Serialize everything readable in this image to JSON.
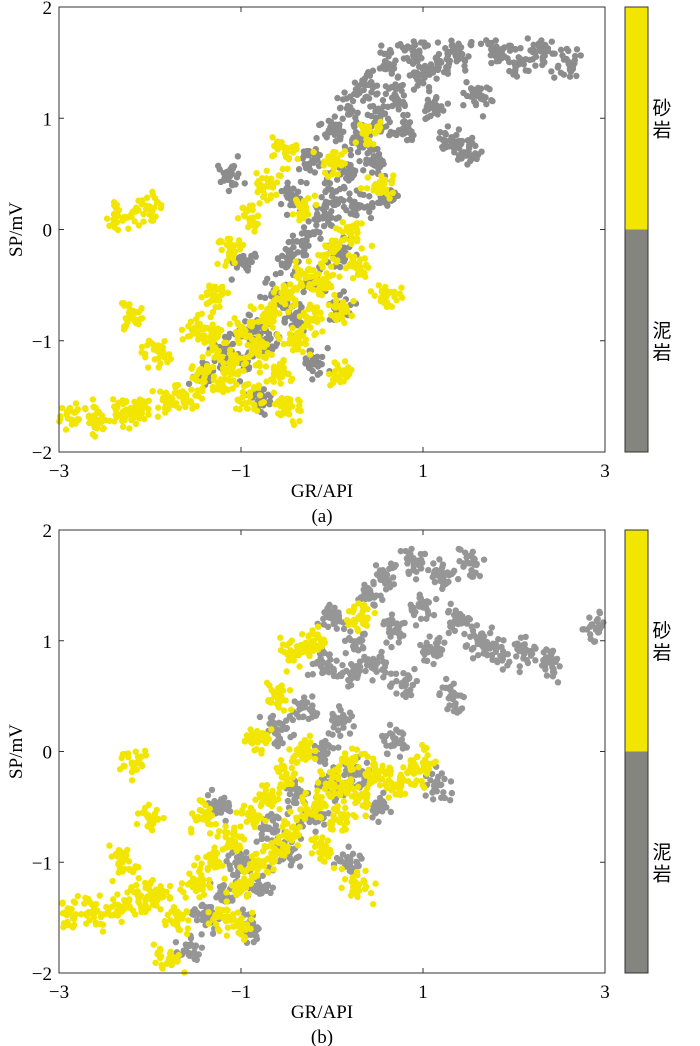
{
  "chart_data": [
    {
      "type": "scatter",
      "panel_label": "(a)",
      "xlabel": "GR/API",
      "ylabel": "SP/mV",
      "xlim": [
        -3,
        3
      ],
      "ylim": [
        -2,
        2
      ],
      "xticks": [
        "−3",
        "−1",
        "1",
        "3"
      ],
      "yticks": [
        "2",
        "1",
        "0",
        "−1",
        "−2"
      ],
      "colorbar": {
        "labels": [
          "砂岩",
          "泥岩"
        ],
        "colors": [
          "#f2e600",
          "#858580"
        ]
      },
      "series": [
        {
          "name": "泥岩",
          "color": "#8c8c8c",
          "points": [
            [
              -1.4,
              -1.3
            ],
            [
              -1.2,
              -1.1
            ],
            [
              -1,
              -1.2
            ],
            [
              -0.9,
              -0.9
            ],
            [
              -0.7,
              -1.0
            ],
            [
              -0.6,
              -0.6
            ],
            [
              -0.4,
              -0.8
            ],
            [
              -0.5,
              -0.3
            ],
            [
              -0.3,
              -0.1
            ],
            [
              -0.2,
              -0.5
            ],
            [
              -0.1,
              0.1
            ],
            [
              0,
              0.3
            ],
            [
              0.1,
              -0.2
            ],
            [
              0.2,
              0.5
            ],
            [
              0.3,
              0.8
            ],
            [
              -0.2,
              0.6
            ],
            [
              0,
              0.9
            ],
            [
              0.2,
              1.1
            ],
            [
              0.4,
              1.3
            ],
            [
              0.5,
              1.0
            ],
            [
              0.6,
              1.5
            ],
            [
              0.7,
              1.2
            ],
            [
              0.8,
              0.9
            ],
            [
              0.9,
              1.6
            ],
            [
              1.0,
              1.4
            ],
            [
              1.1,
              1.1
            ],
            [
              1.2,
              1.5
            ],
            [
              1.3,
              0.8
            ],
            [
              1.4,
              1.6
            ],
            [
              1.6,
              1.2
            ],
            [
              1.8,
              1.6
            ],
            [
              2.0,
              1.5
            ],
            [
              2.3,
              1.6
            ],
            [
              2.6,
              1.5
            ],
            [
              1.5,
              0.7
            ],
            [
              0.3,
              0.2
            ],
            [
              0.5,
              0.6
            ],
            [
              -0.4,
              0.3
            ],
            [
              -1.0,
              -0.3
            ],
            [
              -0.8,
              -1.5
            ],
            [
              -1.1,
              0.5
            ],
            [
              -0.2,
              -1.2
            ],
            [
              0.1,
              -0.7
            ],
            [
              0.6,
              0.3
            ]
          ]
        },
        {
          "name": "砂岩",
          "color": "#f2e600",
          "points": [
            [
              -2.9,
              -1.7
            ],
            [
              -2.6,
              -1.7
            ],
            [
              -2.3,
              -1.65
            ],
            [
              -2.1,
              -1.6
            ],
            [
              -1.8,
              -1.55
            ],
            [
              -1.6,
              -1.5
            ],
            [
              -1.4,
              -1.3
            ],
            [
              -1.3,
              -1.0
            ],
            [
              -1.2,
              -1.4
            ],
            [
              -1.1,
              -1.2
            ],
            [
              -1.0,
              -0.9
            ],
            [
              -0.9,
              -1.5
            ],
            [
              -0.8,
              -1.1
            ],
            [
              -0.7,
              -0.8
            ],
            [
              -0.6,
              -1.3
            ],
            [
              -0.5,
              -0.6
            ],
            [
              -0.4,
              -1.0
            ],
            [
              -0.3,
              -0.4
            ],
            [
              -0.2,
              -0.8
            ],
            [
              -0.1,
              -0.5
            ],
            [
              0,
              -0.2
            ],
            [
              0.1,
              -0.7
            ],
            [
              0.2,
              0.0
            ],
            [
              0.3,
              -0.3
            ],
            [
              -1.5,
              -0.9
            ],
            [
              -1.3,
              -0.6
            ],
            [
              -1.1,
              -0.2
            ],
            [
              -0.9,
              0.1
            ],
            [
              -0.7,
              0.4
            ],
            [
              -0.5,
              0.7
            ],
            [
              -0.3,
              0.2
            ],
            [
              0.0,
              0.6
            ],
            [
              0.4,
              0.9
            ],
            [
              0.5,
              0.4
            ],
            [
              -2.3,
              0.1
            ],
            [
              -2.0,
              0.2
            ],
            [
              -2.2,
              -0.8
            ],
            [
              -1.9,
              -1.1
            ],
            [
              0.1,
              -1.3
            ],
            [
              -0.5,
              -1.6
            ],
            [
              0.6,
              -0.6
            ]
          ]
        }
      ]
    },
    {
      "type": "scatter",
      "panel_label": "(b)",
      "xlabel": "GR/API",
      "ylabel": "SP/mV",
      "xlim": [
        -3,
        3
      ],
      "ylim": [
        -2,
        2
      ],
      "xticks": [
        "−3",
        "−1",
        "1",
        "3"
      ],
      "yticks": [
        "2",
        "1",
        "0",
        "−1",
        "−2"
      ],
      "colorbar": {
        "labels": [
          "砂岩",
          "泥岩"
        ],
        "colors": [
          "#f2e600",
          "#858580"
        ]
      },
      "series": [
        {
          "name": "泥岩",
          "color": "#969696",
          "points": [
            [
              -1.6,
              -1.8
            ],
            [
              -1.4,
              -1.5
            ],
            [
              -1.2,
              -1.3
            ],
            [
              -1.0,
              -1.0
            ],
            [
              -0.8,
              -1.2
            ],
            [
              -0.7,
              -0.7
            ],
            [
              -0.5,
              -0.9
            ],
            [
              -0.4,
              -0.4
            ],
            [
              -0.2,
              -0.6
            ],
            [
              -0.1,
              0.0
            ],
            [
              0,
              -0.3
            ],
            [
              0.1,
              0.3
            ],
            [
              0.2,
              0.7
            ],
            [
              0.3,
              1.0
            ],
            [
              -0.3,
              0.4
            ],
            [
              -0.1,
              0.8
            ],
            [
              0.0,
              1.2
            ],
            [
              0.4,
              1.4
            ],
            [
              0.5,
              0.8
            ],
            [
              0.6,
              1.6
            ],
            [
              0.7,
              1.1
            ],
            [
              0.8,
              0.6
            ],
            [
              0.9,
              1.7
            ],
            [
              1.0,
              1.3
            ],
            [
              1.1,
              0.9
            ],
            [
              1.2,
              1.6
            ],
            [
              1.3,
              0.5
            ],
            [
              1.4,
              1.2
            ],
            [
              1.6,
              1.0
            ],
            [
              1.8,
              0.9
            ],
            [
              2.1,
              0.9
            ],
            [
              2.4,
              0.8
            ],
            [
              1.5,
              1.7
            ],
            [
              0.3,
              -0.2
            ],
            [
              0.7,
              0.1
            ],
            [
              1.2,
              -0.3
            ],
            [
              -0.6,
              0.2
            ],
            [
              -1.2,
              -0.5
            ],
            [
              -0.9,
              -1.6
            ],
            [
              0.2,
              -1.0
            ],
            [
              0.5,
              -0.5
            ],
            [
              2.9,
              1.1
            ]
          ]
        },
        {
          "name": "砂岩",
          "color": "#f2e600",
          "points": [
            [
              -2.9,
              -1.45
            ],
            [
              -2.6,
              -1.45
            ],
            [
              -2.3,
              -1.4
            ],
            [
              -2.1,
              -1.3
            ],
            [
              -1.9,
              -1.3
            ],
            [
              -1.7,
              -1.5
            ],
            [
              -1.5,
              -1.2
            ],
            [
              -1.3,
              -1.0
            ],
            [
              -1.2,
              -1.5
            ],
            [
              -1.1,
              -0.8
            ],
            [
              -1.0,
              -1.2
            ],
            [
              -0.9,
              -0.6
            ],
            [
              -0.8,
              -1.0
            ],
            [
              -0.7,
              -0.4
            ],
            [
              -0.6,
              -0.9
            ],
            [
              -0.5,
              -0.2
            ],
            [
              -0.4,
              -0.7
            ],
            [
              -0.3,
              0.0
            ],
            [
              -0.2,
              -0.5
            ],
            [
              -0.1,
              -0.9
            ],
            [
              0,
              -0.3
            ],
            [
              0.1,
              -0.6
            ],
            [
              0.2,
              -0.1
            ],
            [
              0.3,
              -0.4
            ],
            [
              0.5,
              -0.2
            ],
            [
              0.7,
              -0.3
            ],
            [
              0.9,
              -0.2
            ],
            [
              1.0,
              -0.1
            ],
            [
              -1.4,
              -0.6
            ],
            [
              -0.8,
              0.1
            ],
            [
              -0.6,
              0.5
            ],
            [
              -0.4,
              0.9
            ],
            [
              -0.2,
              1.0
            ],
            [
              0.3,
              1.2
            ],
            [
              -1.8,
              -1.9
            ],
            [
              -2.2,
              -0.1
            ],
            [
              -2.0,
              -0.6
            ],
            [
              -2.3,
              -1.0
            ],
            [
              -1.0,
              -1.6
            ],
            [
              0.3,
              -1.2
            ]
          ]
        }
      ]
    }
  ]
}
